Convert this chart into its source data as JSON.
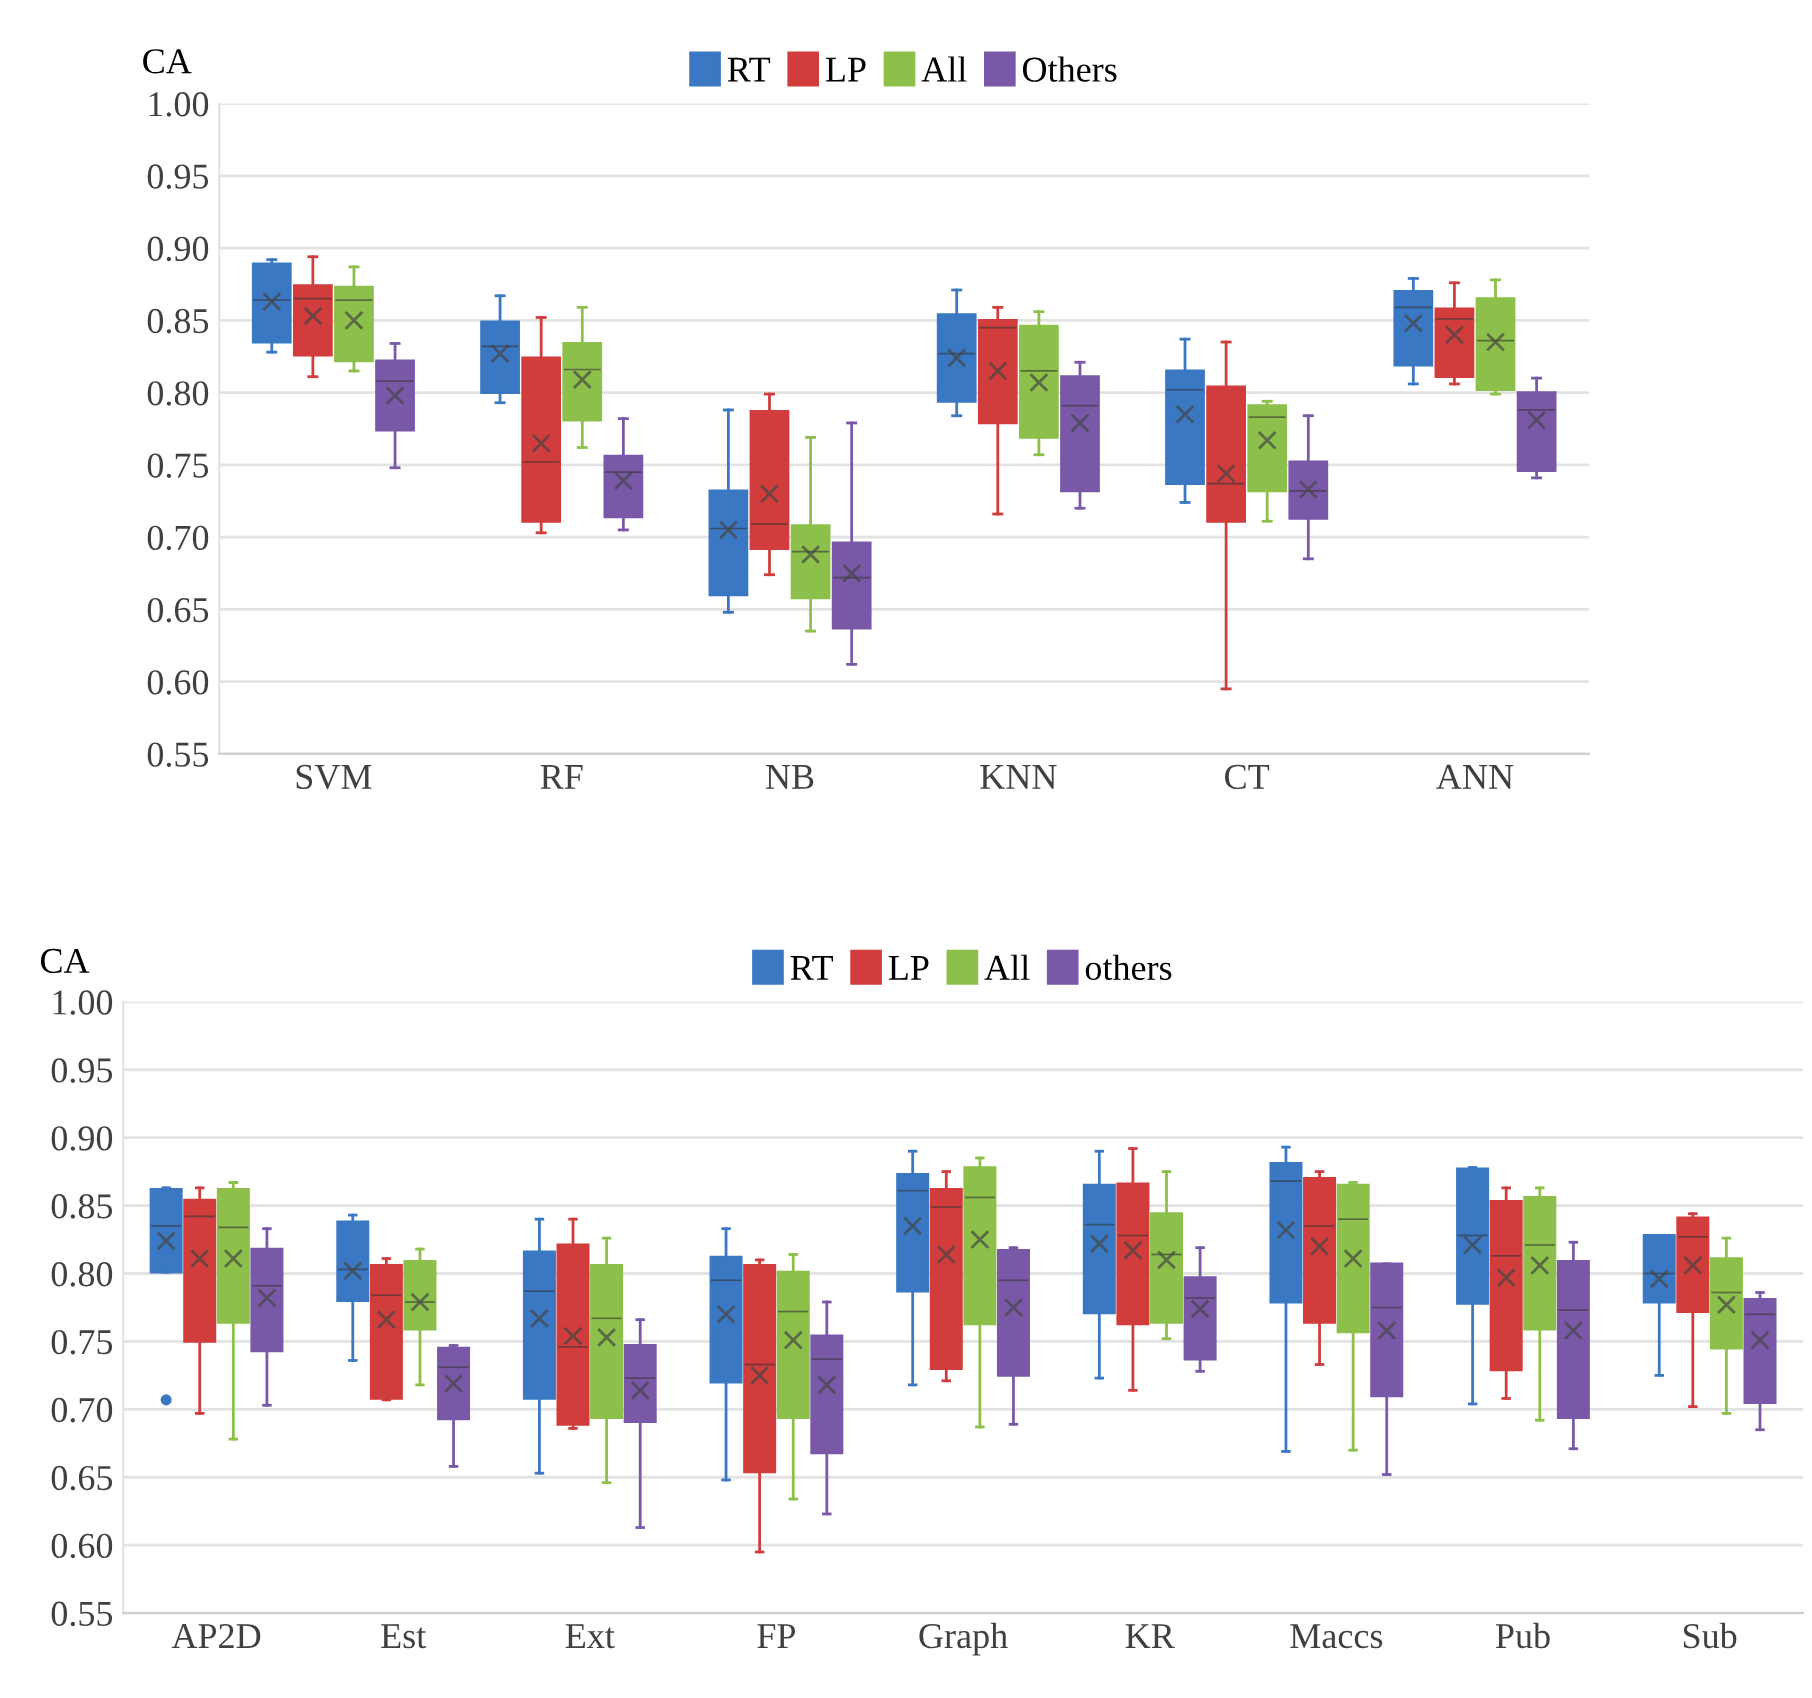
{
  "chart_data": [
    {
      "type": "box",
      "ylabel": "CA",
      "categories": [
        "SVM",
        "RF",
        "NB",
        "KNN",
        "CT",
        "ANN"
      ],
      "ylim": [
        0.55,
        1.0
      ],
      "yticks": [
        {
          "value": 0.55,
          "label": "0.55"
        },
        {
          "value": 0.6,
          "label": "0.60"
        },
        {
          "value": 0.65,
          "label": "0.65"
        },
        {
          "value": 0.7,
          "label": "0.70"
        },
        {
          "value": 0.75,
          "label": "0.75"
        },
        {
          "value": 0.8,
          "label": "0.80"
        },
        {
          "value": 0.85,
          "label": "0.85"
        },
        {
          "value": 0.9,
          "label": "0.90"
        },
        {
          "value": 0.95,
          "label": "0.95"
        },
        {
          "value": 1.0,
          "label": "1.00"
        }
      ],
      "grid": "y",
      "legend": "top",
      "marker": "cross",
      "series": [
        {
          "name": "RT",
          "color": "#3a78c3",
          "boxes": [
            {
              "low": 0.828,
              "q1": 0.835,
              "median": 0.864,
              "q3": 0.889,
              "high": 0.892,
              "mean": 0.863
            },
            {
              "low": 0.793,
              "q1": 0.8,
              "median": 0.832,
              "q3": 0.849,
              "high": 0.867,
              "mean": 0.827
            },
            {
              "low": 0.648,
              "q1": 0.66,
              "median": 0.706,
              "q3": 0.732,
              "high": 0.788,
              "mean": 0.705
            },
            {
              "low": 0.784,
              "q1": 0.794,
              "median": 0.827,
              "q3": 0.854,
              "high": 0.871,
              "mean": 0.824
            },
            {
              "low": 0.724,
              "q1": 0.737,
              "median": 0.802,
              "q3": 0.815,
              "high": 0.837,
              "mean": 0.785
            },
            {
              "low": 0.806,
              "q1": 0.819,
              "median": 0.859,
              "q3": 0.87,
              "high": 0.879,
              "mean": 0.848
            }
          ]
        },
        {
          "name": "LP",
          "color": "#d13c3c",
          "boxes": [
            {
              "low": 0.811,
              "q1": 0.826,
              "median": 0.865,
              "q3": 0.874,
              "high": 0.894,
              "mean": 0.853
            },
            {
              "low": 0.703,
              "q1": 0.711,
              "median": 0.752,
              "q3": 0.824,
              "high": 0.852,
              "mean": 0.765
            },
            {
              "low": 0.674,
              "q1": 0.692,
              "median": 0.709,
              "q3": 0.787,
              "high": 0.799,
              "mean": 0.73
            },
            {
              "low": 0.716,
              "q1": 0.779,
              "median": 0.845,
              "q3": 0.85,
              "high": 0.859,
              "mean": 0.815
            },
            {
              "low": 0.595,
              "q1": 0.711,
              "median": 0.737,
              "q3": 0.804,
              "high": 0.835,
              "mean": 0.744
            },
            {
              "low": 0.806,
              "q1": 0.811,
              "median": 0.851,
              "q3": 0.858,
              "high": 0.876,
              "mean": 0.84
            }
          ]
        },
        {
          "name": "All",
          "color": "#8dc04a",
          "boxes": [
            {
              "low": 0.815,
              "q1": 0.822,
              "median": 0.864,
              "q3": 0.873,
              "high": 0.887,
              "mean": 0.85
            },
            {
              "low": 0.762,
              "q1": 0.781,
              "median": 0.816,
              "q3": 0.834,
              "high": 0.859,
              "mean": 0.809
            },
            {
              "low": 0.635,
              "q1": 0.658,
              "median": 0.69,
              "q3": 0.708,
              "high": 0.769,
              "mean": 0.688
            },
            {
              "low": 0.757,
              "q1": 0.769,
              "median": 0.815,
              "q3": 0.846,
              "high": 0.856,
              "mean": 0.807
            },
            {
              "low": 0.711,
              "q1": 0.732,
              "median": 0.783,
              "q3": 0.791,
              "high": 0.794,
              "mean": 0.767
            },
            {
              "low": 0.799,
              "q1": 0.802,
              "median": 0.836,
              "q3": 0.865,
              "high": 0.878,
              "mean": 0.835
            }
          ]
        },
        {
          "name": "Others",
          "color": "#7a58a8",
          "boxes": [
            {
              "low": 0.748,
              "q1": 0.774,
              "median": 0.808,
              "q3": 0.822,
              "high": 0.834,
              "mean": 0.798
            },
            {
              "low": 0.705,
              "q1": 0.714,
              "median": 0.745,
              "q3": 0.756,
              "high": 0.782,
              "mean": 0.739
            },
            {
              "low": 0.612,
              "q1": 0.637,
              "median": 0.672,
              "q3": 0.696,
              "high": 0.779,
              "mean": 0.675
            },
            {
              "low": 0.72,
              "q1": 0.732,
              "median": 0.791,
              "q3": 0.811,
              "high": 0.821,
              "mean": 0.779
            },
            {
              "low": 0.685,
              "q1": 0.713,
              "median": 0.732,
              "q3": 0.752,
              "high": 0.784,
              "mean": 0.733
            },
            {
              "low": 0.741,
              "q1": 0.746,
              "median": 0.788,
              "q3": 0.8,
              "high": 0.81,
              "mean": 0.781
            }
          ]
        }
      ]
    },
    {
      "type": "box",
      "ylabel": "CA",
      "categories": [
        "AP2D",
        "Est",
        "Ext",
        "FP",
        "Graph",
        "KR",
        "Maccs",
        "Pub",
        "Sub"
      ],
      "ylim": [
        0.55,
        1.0
      ],
      "yticks": [
        {
          "value": 0.55,
          "label": "0.55"
        },
        {
          "value": 0.6,
          "label": "0.60"
        },
        {
          "value": 0.65,
          "label": "0.65"
        },
        {
          "value": 0.7,
          "label": "0.70"
        },
        {
          "value": 0.75,
          "label": "0.75"
        },
        {
          "value": 0.8,
          "label": "0.80"
        },
        {
          "value": 0.85,
          "label": "0.85"
        },
        {
          "value": 0.9,
          "label": "0.90"
        },
        {
          "value": 0.95,
          "label": "0.95"
        },
        {
          "value": 1.0,
          "label": "1.00"
        }
      ],
      "grid": "y",
      "legend": "top",
      "marker": "cross",
      "series": [
        {
          "name": "RT",
          "color": "#3a78c3",
          "boxes": [
            {
              "low": 0.801,
              "q1": 0.801,
              "median": 0.835,
              "q3": 0.862,
              "high": 0.863,
              "mean": 0.824,
              "outliers": [
                0.707
              ]
            },
            {
              "low": 0.736,
              "q1": 0.78,
              "median": 0.803,
              "q3": 0.838,
              "high": 0.843,
              "mean": 0.802
            },
            {
              "low": 0.653,
              "q1": 0.708,
              "median": 0.787,
              "q3": 0.816,
              "high": 0.84,
              "mean": 0.767
            },
            {
              "low": 0.648,
              "q1": 0.72,
              "median": 0.795,
              "q3": 0.812,
              "high": 0.833,
              "mean": 0.77
            },
            {
              "low": 0.718,
              "q1": 0.787,
              "median": 0.861,
              "q3": 0.873,
              "high": 0.89,
              "mean": 0.835
            },
            {
              "low": 0.723,
              "q1": 0.771,
              "median": 0.836,
              "q3": 0.865,
              "high": 0.89,
              "mean": 0.822
            },
            {
              "low": 0.669,
              "q1": 0.779,
              "median": 0.868,
              "q3": 0.881,
              "high": 0.893,
              "mean": 0.832
            },
            {
              "low": 0.704,
              "q1": 0.778,
              "median": 0.828,
              "q3": 0.877,
              "high": 0.878,
              "mean": 0.821
            },
            {
              "low": 0.725,
              "q1": 0.779,
              "median": 0.8,
              "q3": 0.828,
              "high": 0.828,
              "mean": 0.796
            }
          ]
        },
        {
          "name": "LP",
          "color": "#d13c3c",
          "boxes": [
            {
              "low": 0.697,
              "q1": 0.75,
              "median": 0.842,
              "q3": 0.854,
              "high": 0.863,
              "mean": 0.811
            },
            {
              "low": 0.707,
              "q1": 0.708,
              "median": 0.784,
              "q3": 0.806,
              "high": 0.811,
              "mean": 0.766
            },
            {
              "low": 0.686,
              "q1": 0.689,
              "median": 0.746,
              "q3": 0.821,
              "high": 0.84,
              "mean": 0.754
            },
            {
              "low": 0.595,
              "q1": 0.654,
              "median": 0.733,
              "q3": 0.806,
              "high": 0.81,
              "mean": 0.725
            },
            {
              "low": 0.721,
              "q1": 0.73,
              "median": 0.849,
              "q3": 0.862,
              "high": 0.875,
              "mean": 0.814
            },
            {
              "low": 0.714,
              "q1": 0.763,
              "median": 0.828,
              "q3": 0.866,
              "high": 0.892,
              "mean": 0.817
            },
            {
              "low": 0.733,
              "q1": 0.764,
              "median": 0.835,
              "q3": 0.87,
              "high": 0.875,
              "mean": 0.82
            },
            {
              "low": 0.708,
              "q1": 0.729,
              "median": 0.813,
              "q3": 0.853,
              "high": 0.863,
              "mean": 0.797
            },
            {
              "low": 0.702,
              "q1": 0.772,
              "median": 0.827,
              "q3": 0.841,
              "high": 0.844,
              "mean": 0.806
            }
          ]
        },
        {
          "name": "All",
          "color": "#8dc04a",
          "boxes": [
            {
              "low": 0.678,
              "q1": 0.764,
              "median": 0.834,
              "q3": 0.862,
              "high": 0.867,
              "mean": 0.811
            },
            {
              "low": 0.718,
              "q1": 0.759,
              "median": 0.779,
              "q3": 0.809,
              "high": 0.818,
              "mean": 0.779
            },
            {
              "low": 0.646,
              "q1": 0.694,
              "median": 0.767,
              "q3": 0.806,
              "high": 0.826,
              "mean": 0.753
            },
            {
              "low": 0.634,
              "q1": 0.694,
              "median": 0.772,
              "q3": 0.801,
              "high": 0.814,
              "mean": 0.751
            },
            {
              "low": 0.687,
              "q1": 0.763,
              "median": 0.856,
              "q3": 0.878,
              "high": 0.885,
              "mean": 0.825
            },
            {
              "low": 0.752,
              "q1": 0.764,
              "median": 0.814,
              "q3": 0.844,
              "high": 0.875,
              "mean": 0.81
            },
            {
              "low": 0.67,
              "q1": 0.757,
              "median": 0.84,
              "q3": 0.865,
              "high": 0.867,
              "mean": 0.811
            },
            {
              "low": 0.692,
              "q1": 0.759,
              "median": 0.821,
              "q3": 0.856,
              "high": 0.863,
              "mean": 0.806
            },
            {
              "low": 0.697,
              "q1": 0.745,
              "median": 0.786,
              "q3": 0.811,
              "high": 0.826,
              "mean": 0.777
            }
          ]
        },
        {
          "name": "others",
          "color": "#7a58a8",
          "boxes": [
            {
              "low": 0.703,
              "q1": 0.743,
              "median": 0.791,
              "q3": 0.818,
              "high": 0.833,
              "mean": 0.782
            },
            {
              "low": 0.658,
              "q1": 0.693,
              "median": 0.731,
              "q3": 0.745,
              "high": 0.747,
              "mean": 0.719
            },
            {
              "low": 0.613,
              "q1": 0.691,
              "median": 0.723,
              "q3": 0.747,
              "high": 0.766,
              "mean": 0.714
            },
            {
              "low": 0.623,
              "q1": 0.668,
              "median": 0.737,
              "q3": 0.754,
              "high": 0.779,
              "mean": 0.718
            },
            {
              "low": 0.689,
              "q1": 0.725,
              "median": 0.795,
              "q3": 0.817,
              "high": 0.819,
              "mean": 0.775
            },
            {
              "low": 0.728,
              "q1": 0.737,
              "median": 0.782,
              "q3": 0.797,
              "high": 0.819,
              "mean": 0.774
            },
            {
              "low": 0.652,
              "q1": 0.71,
              "median": 0.775,
              "q3": 0.807,
              "high": 0.807,
              "mean": 0.758
            },
            {
              "low": 0.671,
              "q1": 0.694,
              "median": 0.773,
              "q3": 0.809,
              "high": 0.823,
              "mean": 0.758
            },
            {
              "low": 0.685,
              "q1": 0.705,
              "median": 0.77,
              "q3": 0.781,
              "high": 0.786,
              "mean": 0.751
            }
          ]
        }
      ]
    }
  ]
}
